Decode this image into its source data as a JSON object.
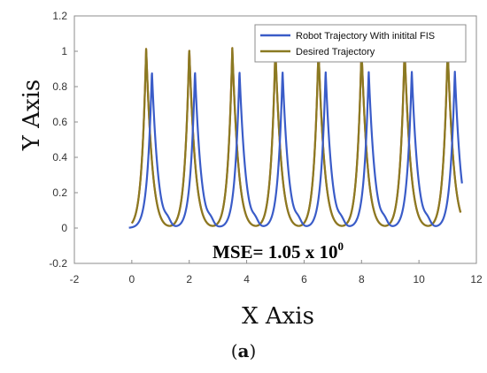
{
  "chart_data": {
    "type": "line",
    "title": "",
    "xlabel": "X Axis",
    "ylabel": "Y Axis",
    "xlim": [
      -2,
      12
    ],
    "ylim": [
      -0.2,
      1.2
    ],
    "xticks": [
      -2,
      0,
      2,
      4,
      6,
      8,
      10,
      12
    ],
    "yticks": [
      -0.2,
      0,
      0.2,
      0.4,
      0.6,
      0.8,
      1,
      1.2
    ],
    "xtick_labels": [
      "-2",
      "0",
      "2",
      "4",
      "6",
      "8",
      "10",
      "12"
    ],
    "ytick_labels": [
      "-0.2",
      "0",
      "0.2",
      "0.4",
      "0.6",
      "0.8",
      "1",
      "1.2"
    ],
    "legend_position": "top-right",
    "grid": false,
    "series": [
      {
        "name": "Robot Trajectory With initital FIS",
        "color": "#3a5cc8",
        "peak_x": [
          0.7,
          2.2,
          3.75,
          5.25,
          6.75,
          8.25,
          9.75,
          11.25
        ],
        "peak_y": 0.89,
        "bump_y": 0.03,
        "x_start": -0.1,
        "x_end": 11.5
      },
      {
        "name": "Desired Trajectory",
        "color": "#8a7a22",
        "peak_x": [
          0.5,
          2.0,
          3.5,
          5.0,
          6.5,
          8.0,
          9.5,
          11.0
        ],
        "peak_y": 1.02,
        "bump_y": 0.0,
        "x_start": 0.0,
        "x_end": 11.45
      },
      {
        "name": "",
        "color": "#d9542a",
        "peak_x": [
          0.5,
          2.0,
          3.5,
          5.0,
          6.5,
          8.0,
          9.5,
          11.0
        ],
        "peak_y": 1.02,
        "bump_y": 0.0,
        "x_start": 0.0,
        "x_end": 11.45
      }
    ],
    "annotation": {
      "text": "MSE= 1.05 x 10",
      "superscript": "0"
    }
  },
  "panel_label": {
    "open": "(",
    "letter": "a",
    "close": ")"
  }
}
